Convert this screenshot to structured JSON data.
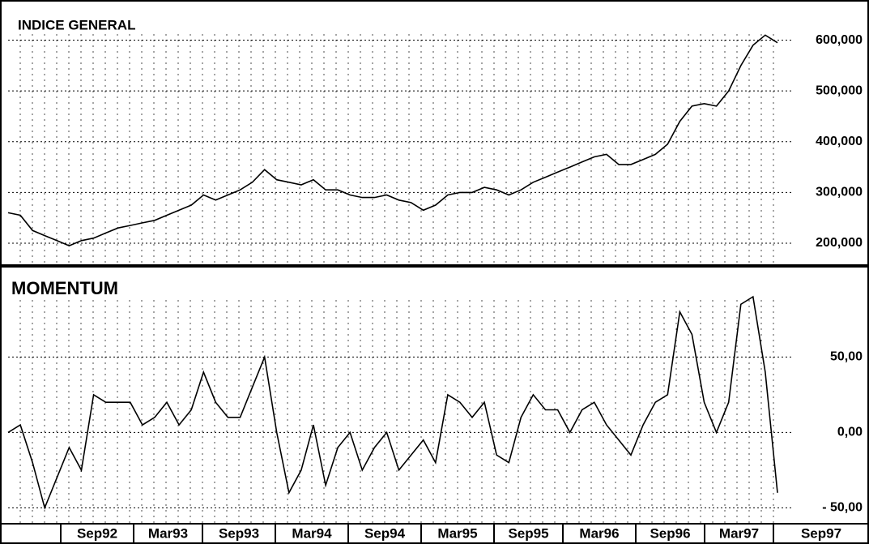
{
  "chart_data": [
    {
      "type": "line",
      "title": "INDICE GENERAL",
      "color": "#000000",
      "grid": true,
      "ylim": [
        160000,
        660000
      ],
      "yticks": [
        {
          "value": 200000,
          "label": "200,000"
        },
        {
          "value": 300000,
          "label": "300,000"
        },
        {
          "value": 400000,
          "label": "400,000"
        },
        {
          "value": 500000,
          "label": "500,000"
        },
        {
          "value": 600000,
          "label": "600,000"
        }
      ],
      "values": [
        260000,
        255000,
        225000,
        215000,
        205000,
        195000,
        205000,
        210000,
        220000,
        230000,
        235000,
        240000,
        245000,
        255000,
        265000,
        275000,
        295000,
        285000,
        295000,
        305000,
        320000,
        345000,
        325000,
        320000,
        315000,
        325000,
        305000,
        305000,
        295000,
        290000,
        290000,
        295000,
        285000,
        280000,
        265000,
        275000,
        295000,
        300000,
        300000,
        310000,
        305000,
        295000,
        305000,
        320000,
        330000,
        340000,
        350000,
        360000,
        370000,
        375000,
        355000,
        355000,
        365000,
        375000,
        395000,
        440000,
        470000,
        475000,
        470000,
        500000,
        550000,
        590000,
        610000,
        595000
      ]
    },
    {
      "type": "line",
      "title": "MOMENTUM",
      "color": "#000000",
      "grid": true,
      "ylim": [
        -60,
        104
      ],
      "yticks": [
        {
          "value": -50,
          "label": "- 50,00"
        },
        {
          "value": 0,
          "label": "0,00"
        },
        {
          "value": 50,
          "label": "50,00"
        }
      ],
      "values": [
        0,
        5,
        -20,
        -50,
        -30,
        -10,
        -25,
        25,
        20,
        20,
        20,
        5,
        10,
        20,
        5,
        15,
        40,
        20,
        10,
        10,
        30,
        50,
        0,
        -40,
        -25,
        5,
        -35,
        -10,
        0,
        -25,
        -10,
        0,
        -25,
        -15,
        -5,
        -20,
        25,
        20,
        10,
        20,
        -15,
        -20,
        10,
        25,
        15,
        15,
        0,
        15,
        20,
        5,
        -5,
        -15,
        5,
        20,
        25,
        80,
        65,
        20,
        0,
        20,
        85,
        90,
        40,
        -40
      ]
    }
  ],
  "x_labels": [
    "Sep92",
    "Mar93",
    "Sep93",
    "Mar94",
    "Sep94",
    "Mar95",
    "Sep95",
    "Mar96",
    "Sep96",
    "Mar97",
    "Sep97"
  ]
}
